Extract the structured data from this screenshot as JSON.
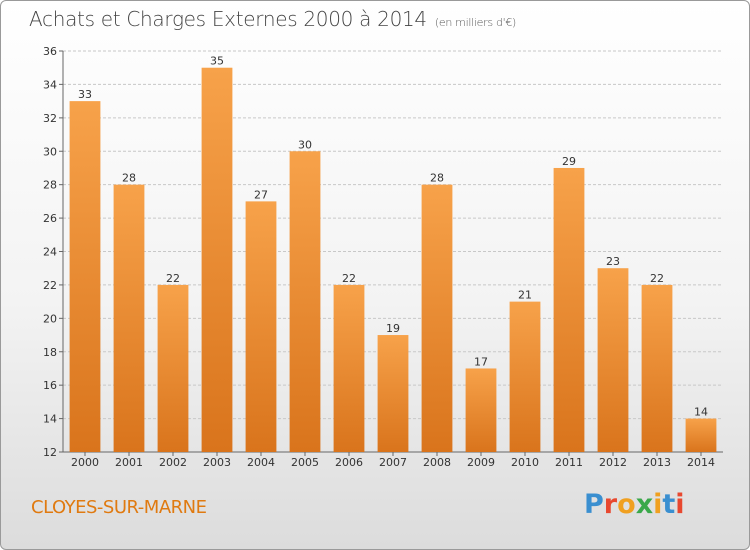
{
  "header": {
    "title": "Achats et Charges Externes 2000 à 2014",
    "subtitle": "(en milliers d'€)"
  },
  "footer": {
    "town": "CLOYES-SUR-MARNE",
    "logo_letters": [
      "P",
      "r",
      "o",
      "x",
      "i",
      "t",
      "i"
    ],
    "logo_colors": [
      "#3a8fd0",
      "#e8482f",
      "#f0a020",
      "#3aa84a",
      "#f0a020",
      "#3a8fd0",
      "#e8482f"
    ]
  },
  "colors": {
    "bar_light": "#f7a24a",
    "bar_dark": "#d9741c",
    "grid": "#c8c8c8"
  },
  "chart_data": {
    "type": "bar",
    "title": "Achats et Charges Externes 2000 à 2014",
    "subtitle": "(en milliers d'€)",
    "categories": [
      "2000",
      "2001",
      "2002",
      "2003",
      "2004",
      "2005",
      "2006",
      "2007",
      "2008",
      "2009",
      "2010",
      "2011",
      "2012",
      "2013",
      "2014"
    ],
    "values": [
      33,
      28,
      22,
      35,
      27,
      30,
      22,
      19,
      28,
      17,
      21,
      29,
      23,
      22,
      14
    ],
    "ylim": [
      12,
      36
    ],
    "yticks": [
      12,
      14,
      16,
      18,
      20,
      22,
      24,
      26,
      28,
      30,
      32,
      34,
      36
    ],
    "xlabel": "",
    "ylabel": "",
    "grid": true
  }
}
